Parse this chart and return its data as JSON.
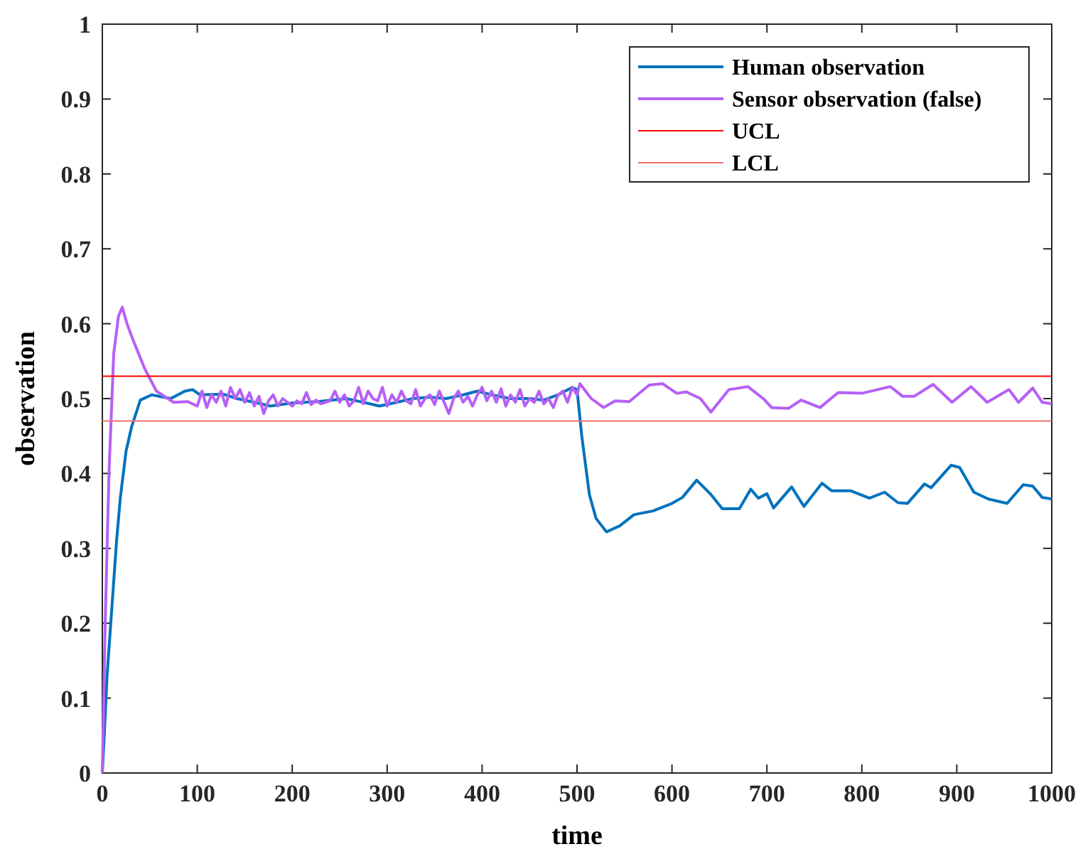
{
  "chart_data": {
    "type": "line",
    "xlabel": "time",
    "ylabel": "observation",
    "xlim": [
      0,
      1000
    ],
    "ylim": [
      0,
      1
    ],
    "xticks": [
      0,
      100,
      200,
      300,
      400,
      500,
      600,
      700,
      800,
      900,
      1000
    ],
    "yticks": [
      0,
      {
        "value": 0.1,
        "label": "0.1"
      },
      {
        "value": 0.2,
        "label": "0.2"
      },
      {
        "value": 0.3,
        "label": "0.3"
      },
      {
        "value": 0.4,
        "label": "0.4"
      },
      {
        "value": 0.5,
        "label": "0.5"
      },
      {
        "value": 0.6,
        "label": "0.6"
      },
      {
        "value": 0.7,
        "label": "0.7"
      },
      {
        "value": 0.8,
        "label": "0.8"
      },
      {
        "value": 0.9,
        "label": "0.9"
      },
      1
    ],
    "grid": false,
    "legend": "top right",
    "marker": "none",
    "line_style": "solid",
    "series": [
      {
        "name": "Human observation",
        "color": "#0072bd",
        "x": [
          0,
          2,
          5,
          10,
          15,
          19,
          25,
          31,
          40,
          52,
          72,
          87,
          95,
          103,
          127,
          142,
          160,
          177,
          200,
          227,
          257,
          275,
          292,
          310,
          327,
          345,
          362,
          380,
          395,
          410,
          430,
          450,
          465,
          480,
          495,
          500,
          505,
          513,
          520,
          531,
          545,
          560,
          580,
          600,
          611,
          626,
          641,
          653,
          671,
          683,
          691,
          700,
          707,
          726,
          739,
          758,
          768,
          788,
          808,
          824,
          838,
          848,
          866,
          873,
          894,
          903,
          918,
          933,
          953,
          970,
          980,
          990,
          1000
        ],
        "values": [
          0,
          0.05,
          0.13,
          0.22,
          0.31,
          0.368,
          0.43,
          0.463,
          0.498,
          0.505,
          0.5,
          0.51,
          0.512,
          0.505,
          0.506,
          0.5,
          0.495,
          0.49,
          0.494,
          0.496,
          0.5,
          0.495,
          0.49,
          0.495,
          0.5,
          0.502,
          0.5,
          0.505,
          0.51,
          0.505,
          0.5,
          0.5,
          0.498,
          0.505,
          0.515,
          0.512,
          0.45,
          0.372,
          0.34,
          0.322,
          0.33,
          0.345,
          0.35,
          0.36,
          0.368,
          0.391,
          0.372,
          0.353,
          0.353,
          0.379,
          0.367,
          0.373,
          0.354,
          0.382,
          0.356,
          0.387,
          0.377,
          0.377,
          0.367,
          0.375,
          0.361,
          0.36,
          0.386,
          0.381,
          0.411,
          0.408,
          0.375,
          0.366,
          0.36,
          0.385,
          0.383,
          0.368,
          0.366
        ]
      },
      {
        "name": "Sensor observation (false)",
        "color": "#b660f5",
        "x": [
          0,
          3,
          7,
          12,
          17,
          21,
          26,
          30,
          35,
          45,
          57,
          75,
          90,
          100,
          105,
          110,
          115,
          120,
          125,
          130,
          135,
          140,
          145,
          150,
          155,
          160,
          165,
          170,
          175,
          180,
          185,
          190,
          195,
          200,
          205,
          210,
          215,
          220,
          225,
          230,
          235,
          240,
          245,
          250,
          255,
          260,
          265,
          270,
          275,
          280,
          285,
          290,
          295,
          300,
          305,
          310,
          315,
          320,
          325,
          330,
          335,
          340,
          345,
          350,
          355,
          360,
          365,
          370,
          375,
          380,
          385,
          390,
          395,
          400,
          405,
          410,
          415,
          420,
          425,
          430,
          435,
          440,
          445,
          450,
          455,
          460,
          465,
          470,
          475,
          480,
          485,
          490,
          495,
          500,
          503,
          515,
          528,
          540,
          555,
          576,
          590,
          605,
          615,
          630,
          641,
          660,
          680,
          697,
          705,
          723,
          736,
          756,
          775,
          800,
          830,
          843,
          855,
          875,
          895,
          915,
          932,
          955,
          965,
          980,
          990,
          1000
        ],
        "values": [
          0,
          0.2,
          0.4,
          0.56,
          0.61,
          0.622,
          0.6,
          0.586,
          0.57,
          0.539,
          0.51,
          0.495,
          0.496,
          0.49,
          0.51,
          0.488,
          0.505,
          0.495,
          0.51,
          0.49,
          0.515,
          0.5,
          0.512,
          0.495,
          0.508,
          0.49,
          0.503,
          0.48,
          0.497,
          0.505,
          0.49,
          0.5,
          0.495,
          0.49,
          0.497,
          0.493,
          0.508,
          0.492,
          0.498,
          0.493,
          0.495,
          0.497,
          0.51,
          0.495,
          0.505,
          0.49,
          0.497,
          0.515,
          0.493,
          0.51,
          0.5,
          0.497,
          0.515,
          0.49,
          0.505,
          0.495,
          0.51,
          0.497,
          0.493,
          0.512,
          0.49,
          0.5,
          0.505,
          0.492,
          0.51,
          0.495,
          0.48,
          0.5,
          0.51,
          0.495,
          0.503,
          0.49,
          0.505,
          0.515,
          0.497,
          0.51,
          0.495,
          0.513,
          0.49,
          0.505,
          0.495,
          0.512,
          0.49,
          0.5,
          0.495,
          0.51,
          0.493,
          0.5,
          0.488,
          0.505,
          0.51,
          0.495,
          0.515,
          0.505,
          0.52,
          0.5,
          0.488,
          0.497,
          0.496,
          0.518,
          0.52,
          0.507,
          0.509,
          0.5,
          0.482,
          0.512,
          0.516,
          0.499,
          0.488,
          0.487,
          0.498,
          0.488,
          0.508,
          0.507,
          0.516,
          0.503,
          0.503,
          0.519,
          0.495,
          0.516,
          0.495,
          0.512,
          0.495,
          0.514,
          0.495,
          0.493
        ]
      },
      {
        "name": "UCL",
        "color": "#ff0000",
        "x": [
          0,
          1000
        ],
        "values": [
          0.53,
          0.53
        ]
      },
      {
        "name": "LCL",
        "color": "#f07070",
        "x": [
          0,
          1000
        ],
        "values": [
          0.47,
          0.47
        ]
      }
    ]
  }
}
